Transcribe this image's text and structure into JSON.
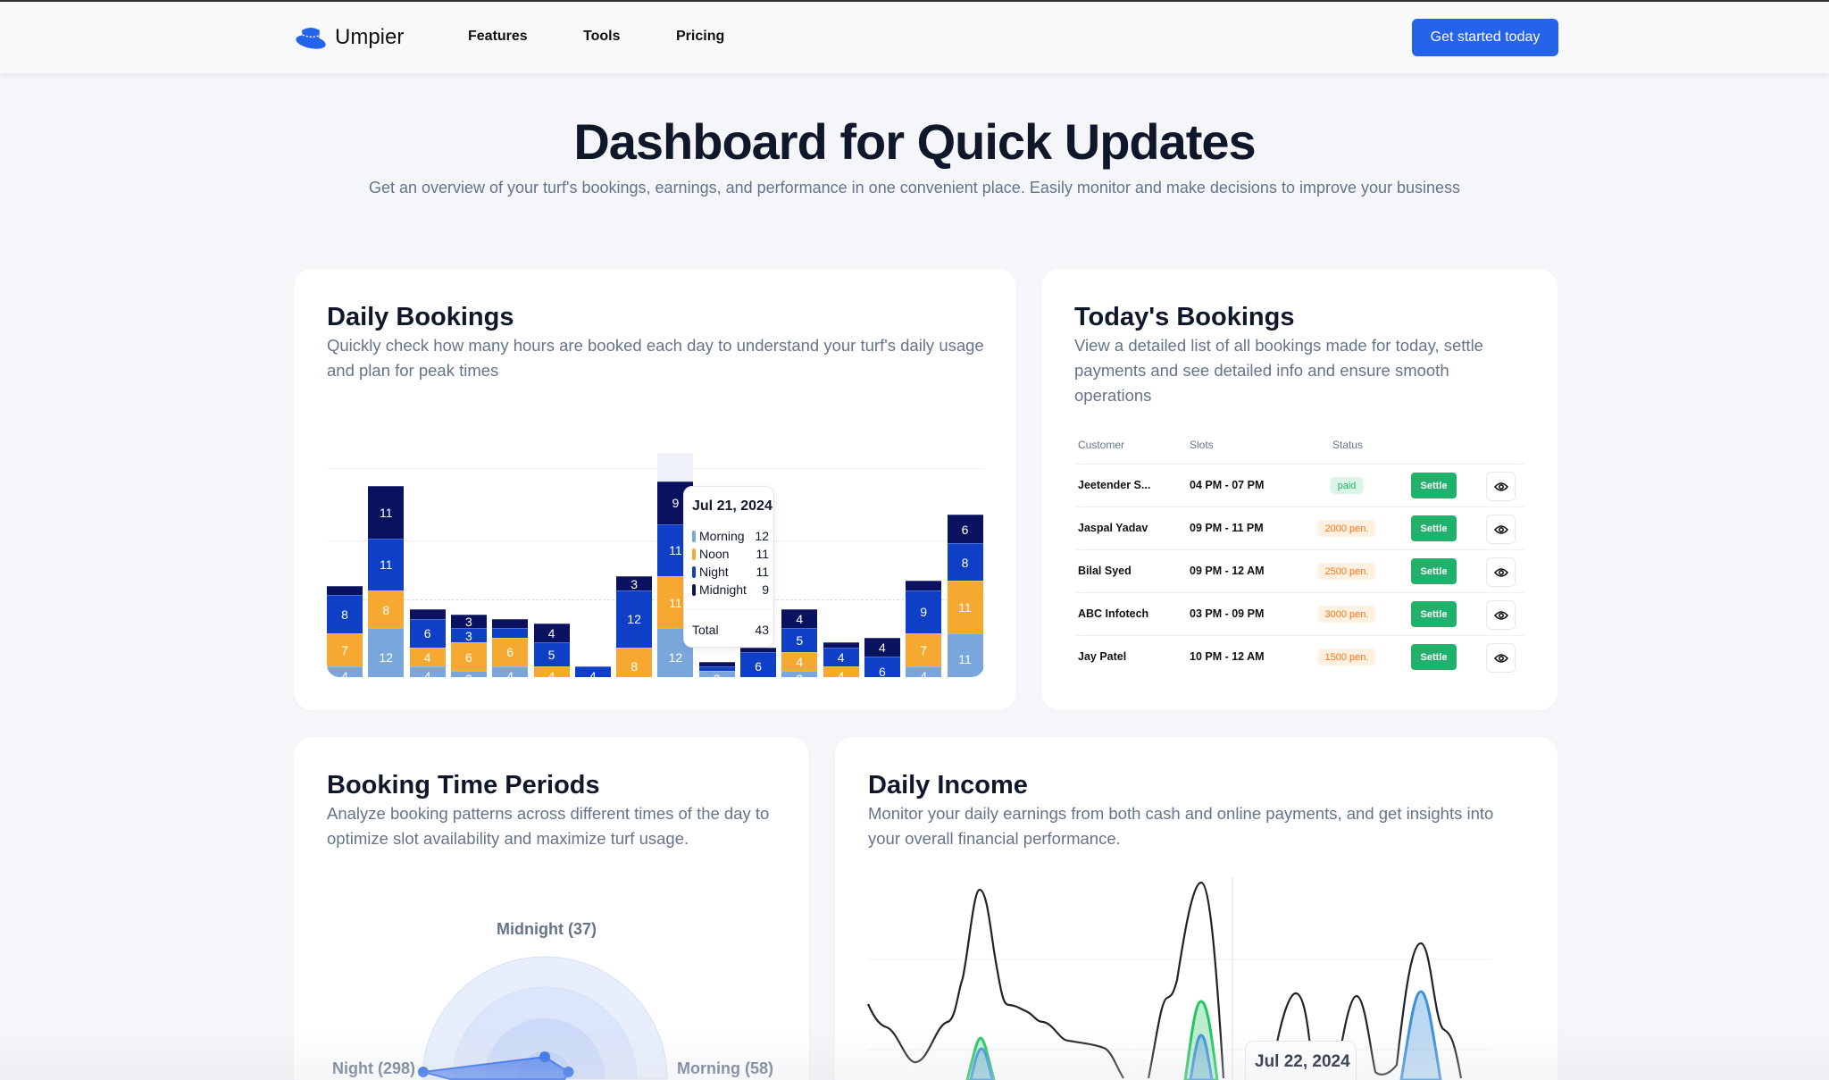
{
  "nav": {
    "brand": "Umpier",
    "links": [
      "Features",
      "Tools",
      "Pricing"
    ],
    "cta": "Get started today"
  },
  "hero": {
    "title": "Dashboard for Quick Updates",
    "subtitle": "Get an overview of your turf's bookings, earnings, and performance in one convenient place. Easily monitor and make decisions to improve your business"
  },
  "daily_bookings": {
    "title": "Daily Bookings",
    "desc": "Quickly check how many hours are booked each day to understand your turf's daily usage and plan for peak times"
  },
  "todays_bookings": {
    "title": "Today's Bookings",
    "desc": "View a detailed list of all bookings made for today, settle payments and see detailed info and ensure smooth operations",
    "headers": [
      "Customer",
      "Slots",
      "Status"
    ],
    "rows": [
      {
        "customer": "Jeetender S...",
        "slots": "04 PM - 07 PM",
        "status": "paid",
        "action": "Settle"
      },
      {
        "customer": "Jaspal Yadav",
        "slots": "09 PM - 11 PM",
        "status": "2000 pen.",
        "action": "Settle"
      },
      {
        "customer": "Bilal Syed",
        "slots": "09 PM - 12 AM",
        "status": "2500 pen.",
        "action": "Settle"
      },
      {
        "customer": "ABC Infotech",
        "slots": "03 PM - 09 PM",
        "status": "3000 pen.",
        "action": "Settle"
      },
      {
        "customer": "Jay Patel",
        "slots": "10 PM - 12 AM",
        "status": "1500 pen.",
        "action": "Settle"
      }
    ]
  },
  "booking_periods": {
    "title": "Booking Time Periods",
    "desc": "Analyze booking patterns across different times of the day to optimize slot availability and maximize turf usage."
  },
  "daily_income": {
    "title": "Daily Income",
    "desc": "Monitor your daily earnings from both cash and online payments, and get insights into your overall financial performance.",
    "tooltip_date": "Jul 22, 2024"
  },
  "chart_data": [
    {
      "type": "bar",
      "stacked": true,
      "series": [
        {
          "name": "Morning",
          "color": "#7aa7db",
          "values": [
            4,
            12,
            4,
            3,
            4,
            0,
            0,
            0,
            12,
            3,
            0,
            3,
            0,
            0,
            4,
            11
          ]
        },
        {
          "name": "Noon",
          "color": "#f6a930",
          "values": [
            7,
            8,
            4,
            6,
            6,
            4,
            0,
            8,
            11,
            0,
            1,
            4,
            4,
            0,
            7,
            11
          ]
        },
        {
          "name": "Night",
          "color": "#0f3fc6",
          "values": [
            8,
            11,
            6,
            3,
            2,
            5,
            4,
            12,
            11,
            1,
            6,
            5,
            4,
            6,
            9,
            8
          ]
        },
        {
          "name": "Midnight",
          "color": "#0a1260",
          "values": [
            2,
            11,
            2,
            3,
            2,
            4,
            0,
            3,
            9,
            1,
            1,
            4,
            1,
            4,
            2,
            6
          ]
        }
      ],
      "tooltip": {
        "date": "Jul 21, 2024",
        "items": [
          {
            "label": "Morning",
            "value": "12"
          },
          {
            "label": "Noon",
            "value": "11"
          },
          {
            "label": "Night",
            "value": "11"
          },
          {
            "label": "Midnight",
            "value": "9"
          }
        ],
        "total_label": "Total",
        "total": "43"
      },
      "highlighted_index": 8
    },
    {
      "type": "radar",
      "axes": [
        {
          "label": "Midnight (37)",
          "value": 37
        },
        {
          "label": "Morning (58)",
          "value": 58
        },
        {
          "label": "Night (298)",
          "value": 298
        }
      ],
      "color": "#2563eb"
    },
    {
      "type": "area",
      "series": [
        {
          "color": "#222222"
        },
        {
          "color": "#22c55e"
        },
        {
          "color": "#3b8fd9"
        }
      ]
    }
  ]
}
